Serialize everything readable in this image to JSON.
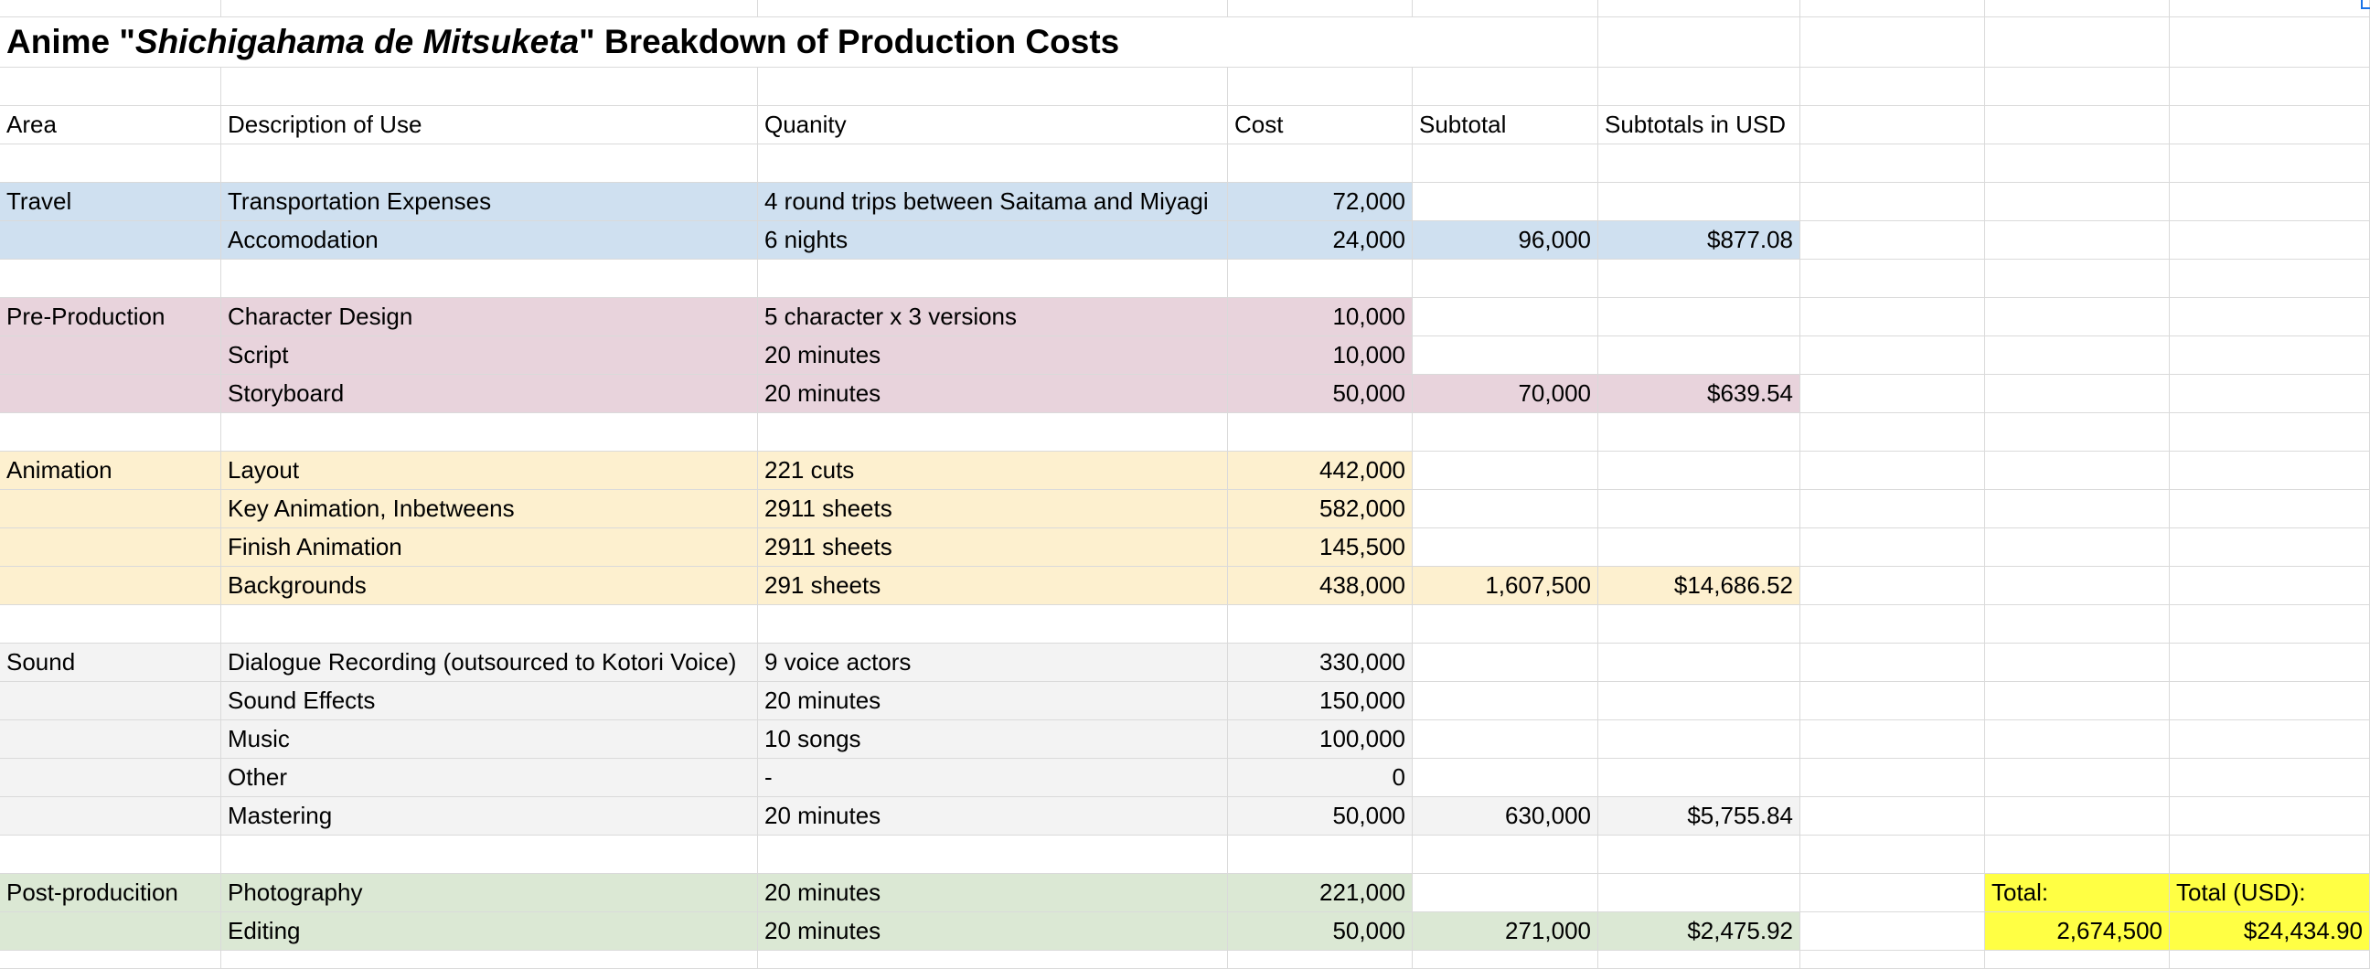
{
  "title": {
    "prefix": "Anime \"",
    "italic": "Shichigahama de Mitsuketa",
    "suffix": "\" Breakdown of Production Costs"
  },
  "headers": {
    "area": "Area",
    "description": "Description of Use",
    "quantity": "Quanity",
    "cost": "Cost",
    "subtotal": "Subtotal",
    "subtotal_usd": "Subtotals in USD"
  },
  "sections": [
    {
      "area": "Travel",
      "color": "#cfe0f0",
      "rows": [
        {
          "description": "Transportation Expenses",
          "quantity": "4 round trips between Saitama and Miyagi",
          "cost": "72,000"
        },
        {
          "description": "Accomodation",
          "quantity": "6 nights",
          "cost": "24,000"
        }
      ],
      "subtotal": "96,000",
      "subtotal_usd": "$877.08"
    },
    {
      "area": "Pre-Production",
      "color": "#e8d3dc",
      "rows": [
        {
          "description": "Character Design",
          "quantity": "5 character x 3 versions",
          "cost": "10,000"
        },
        {
          "description": "Script",
          "quantity": "20 minutes",
          "cost": "10,000"
        },
        {
          "description": "Storyboard",
          "quantity": "20 minutes",
          "cost": "50,000"
        }
      ],
      "subtotal": "70,000",
      "subtotal_usd": "$639.54"
    },
    {
      "area": "Animation",
      "color": "#fdf0cf",
      "rows": [
        {
          "description": "Layout",
          "quantity": "221 cuts",
          "cost": "442,000"
        },
        {
          "description": "Key Animation, Inbetweens",
          "quantity": "2911 sheets",
          "cost": "582,000"
        },
        {
          "description": "Finish Animation",
          "quantity": "2911 sheets",
          "cost": "145,500"
        },
        {
          "description": "Backgrounds",
          "quantity": "291 sheets",
          "cost": "438,000"
        }
      ],
      "subtotal": "1,607,500",
      "subtotal_usd": "$14,686.52"
    },
    {
      "area": "Sound",
      "color": "#f3f3f3",
      "rows": [
        {
          "description": "Dialogue Recording (outsourced to Kotori Voice)",
          "quantity": "9 voice actors",
          "cost": "330,000"
        },
        {
          "description": "Sound Effects",
          "quantity": "20 minutes",
          "cost": "150,000"
        },
        {
          "description": "Music",
          "quantity": "10 songs",
          "cost": "100,000"
        },
        {
          "description": "Other",
          "quantity": "-",
          "cost": "0"
        },
        {
          "description": "Mastering",
          "quantity": "20 minutes",
          "cost": "50,000"
        }
      ],
      "subtotal": "630,000",
      "subtotal_usd": "$5,755.84"
    },
    {
      "area": "Post-producition",
      "color": "#dbe8d4",
      "rows": [
        {
          "description": "Photography",
          "quantity": "20 minutes",
          "cost": "221,000"
        },
        {
          "description": "Editing",
          "quantity": "20 minutes",
          "cost": "50,000"
        }
      ],
      "subtotal": "271,000",
      "subtotal_usd": "$2,475.92"
    }
  ],
  "totals": {
    "total_label": "Total:",
    "total_usd_label": "Total (USD):",
    "total_value": "2,674,500",
    "total_usd_value": "$24,434.90",
    "color": "#ffff44"
  }
}
